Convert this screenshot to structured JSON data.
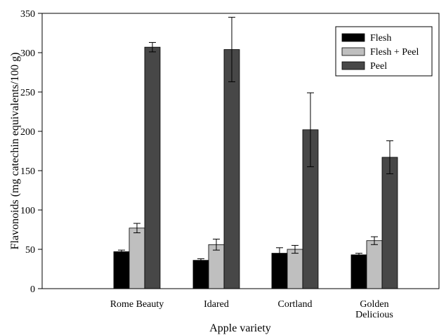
{
  "chart_data": {
    "type": "bar",
    "categories": [
      "Rome Beauty",
      "Idared",
      "Cortland",
      "Golden Delicious"
    ],
    "category_lines": [
      [
        "Rome Beauty"
      ],
      [
        "Idared"
      ],
      [
        "Cortland"
      ],
      [
        "Golden",
        "Delicious"
      ]
    ],
    "series": [
      {
        "name": "Flesh",
        "color": "#000000",
        "values": [
          47,
          36,
          45,
          43
        ],
        "errors": [
          2,
          2,
          7,
          2
        ]
      },
      {
        "name": "Flesh + Peel",
        "color": "#bfbfbf",
        "values": [
          77,
          56,
          50,
          61
        ],
        "errors": [
          6,
          7,
          5,
          5
        ]
      },
      {
        "name": "Peel",
        "color": "#474747",
        "values": [
          307,
          304,
          202,
          167
        ],
        "errors": [
          6,
          41,
          47,
          21
        ]
      }
    ],
    "title": "",
    "xlabel": "Apple variety",
    "ylabel": "Flavonoids (mg catechin equivalents/100 g)",
    "ylim": [
      0,
      350
    ],
    "yticks": [
      0,
      50,
      100,
      150,
      200,
      250,
      300,
      350
    ],
    "grid": false,
    "legend_position": "top-right"
  }
}
